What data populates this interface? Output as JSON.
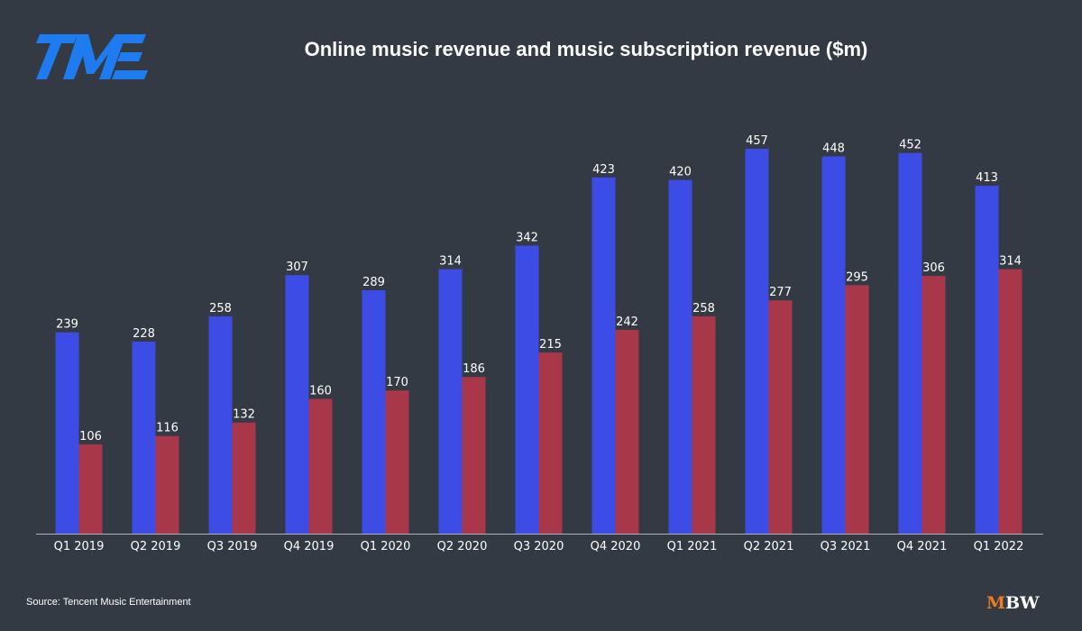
{
  "header": {
    "logo_text": "TME",
    "title": "Online music revenue and music subscription revenue ($m)"
  },
  "footer": {
    "source": "Source: Tencent Music Entertainment",
    "brand_m": "M",
    "brand_bw": "BW"
  },
  "colors": {
    "background": "#343a44",
    "series_online": "#3e4ce6",
    "series_subscription": "#a8374a",
    "logo": "#1e7cf0",
    "brand_accent": "#f07c22"
  },
  "chart_data": {
    "type": "bar",
    "title": "Online music revenue and music subscription revenue ($m)",
    "xlabel": "",
    "ylabel": "",
    "ylim": [
      0,
      500
    ],
    "grid": false,
    "legend": "none",
    "categories": [
      "Q1 2019",
      "Q2 2019",
      "Q3 2019",
      "Q4 2019",
      "Q1 2020",
      "Q2 2020",
      "Q3 2020",
      "Q4 2020",
      "Q1 2021",
      "Q2 2021",
      "Q3 2021",
      "Q4 2021",
      "Q1 2022"
    ],
    "series": [
      {
        "values": [
          239,
          228,
          258,
          307,
          289,
          314,
          342,
          423,
          420,
          457,
          448,
          452,
          413
        ],
        "color": "#3e4ce6"
      },
      {
        "values": [
          106,
          116,
          132,
          160,
          170,
          186,
          215,
          242,
          258,
          277,
          295,
          306,
          314
        ],
        "color": "#a8374a"
      }
    ]
  }
}
